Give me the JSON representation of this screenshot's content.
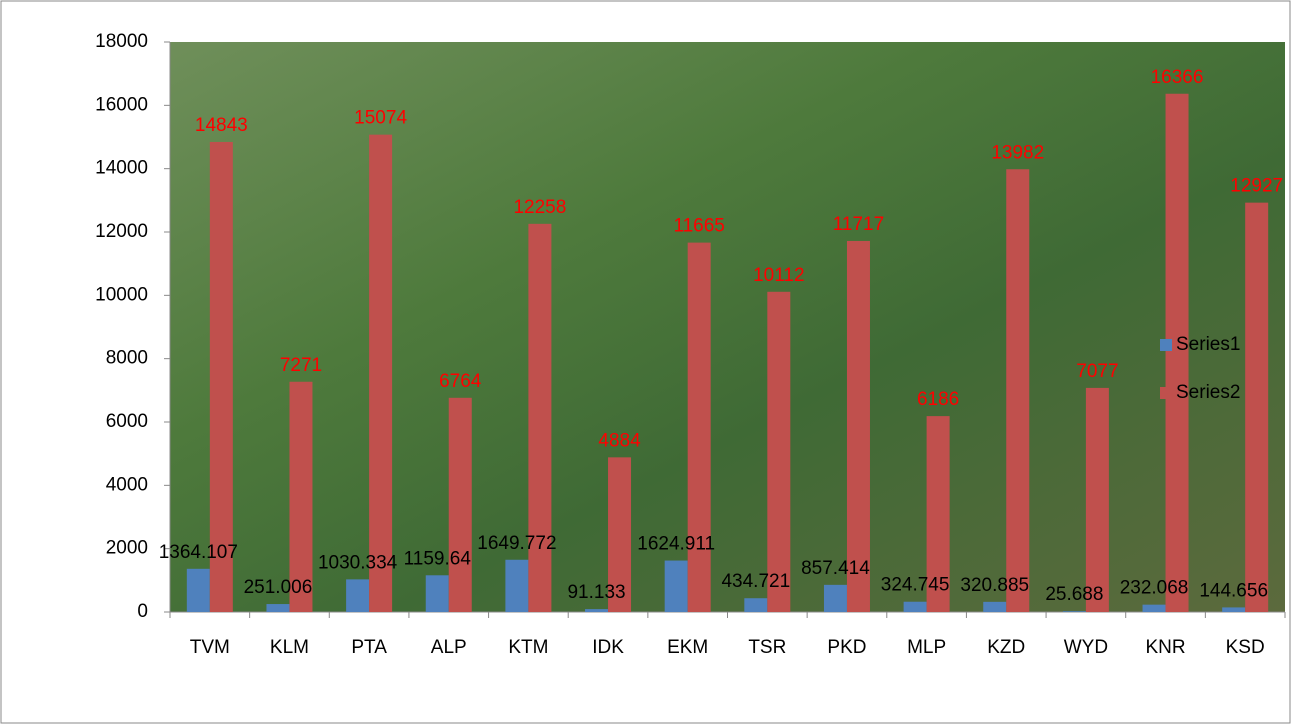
{
  "chart_data": {
    "type": "bar",
    "categories": [
      "TVM",
      "KLM",
      "PTA",
      "ALP",
      "KTM",
      "IDK",
      "EKM",
      "TSR",
      "PKD",
      "MLP",
      "KZD",
      "WYD",
      "KNR",
      "KSD"
    ],
    "series": [
      {
        "name": "Series1",
        "color": "#4f81bd",
        "label_color": "#000000",
        "values": [
          1364.107,
          251.006,
          1030.334,
          1159.64,
          1649.772,
          91.133,
          1624.911,
          434.721,
          857.414,
          324.745,
          320.885,
          25.688,
          232.068,
          144.656
        ]
      },
      {
        "name": "Series2",
        "color": "#c0504d",
        "label_color": "#ff0000",
        "values": [
          14843,
          7271,
          15074,
          6764,
          12258,
          4884,
          11665,
          10112,
          11717,
          6186,
          13982,
          7077,
          16366,
          12927
        ]
      }
    ],
    "ylim": [
      0,
      18000
    ],
    "yticks": [
      0,
      2000,
      4000,
      6000,
      8000,
      10000,
      12000,
      14000,
      16000,
      18000
    ],
    "legend": "right"
  }
}
